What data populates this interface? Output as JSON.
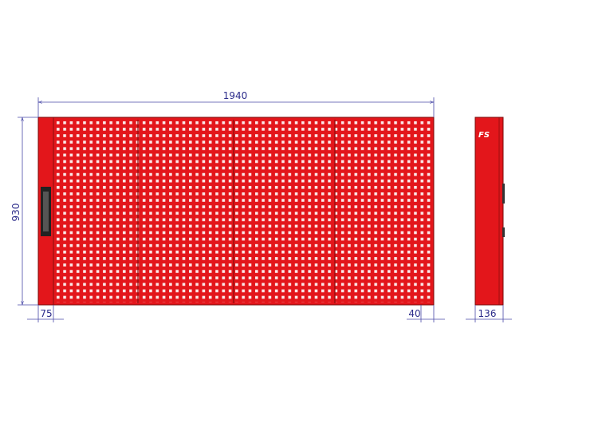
{
  "drawing": {
    "dimensions": {
      "width": "1940",
      "height": "930",
      "left_margin": "75",
      "right_margin": "40",
      "depth": "136"
    },
    "logo": "FS"
  }
}
